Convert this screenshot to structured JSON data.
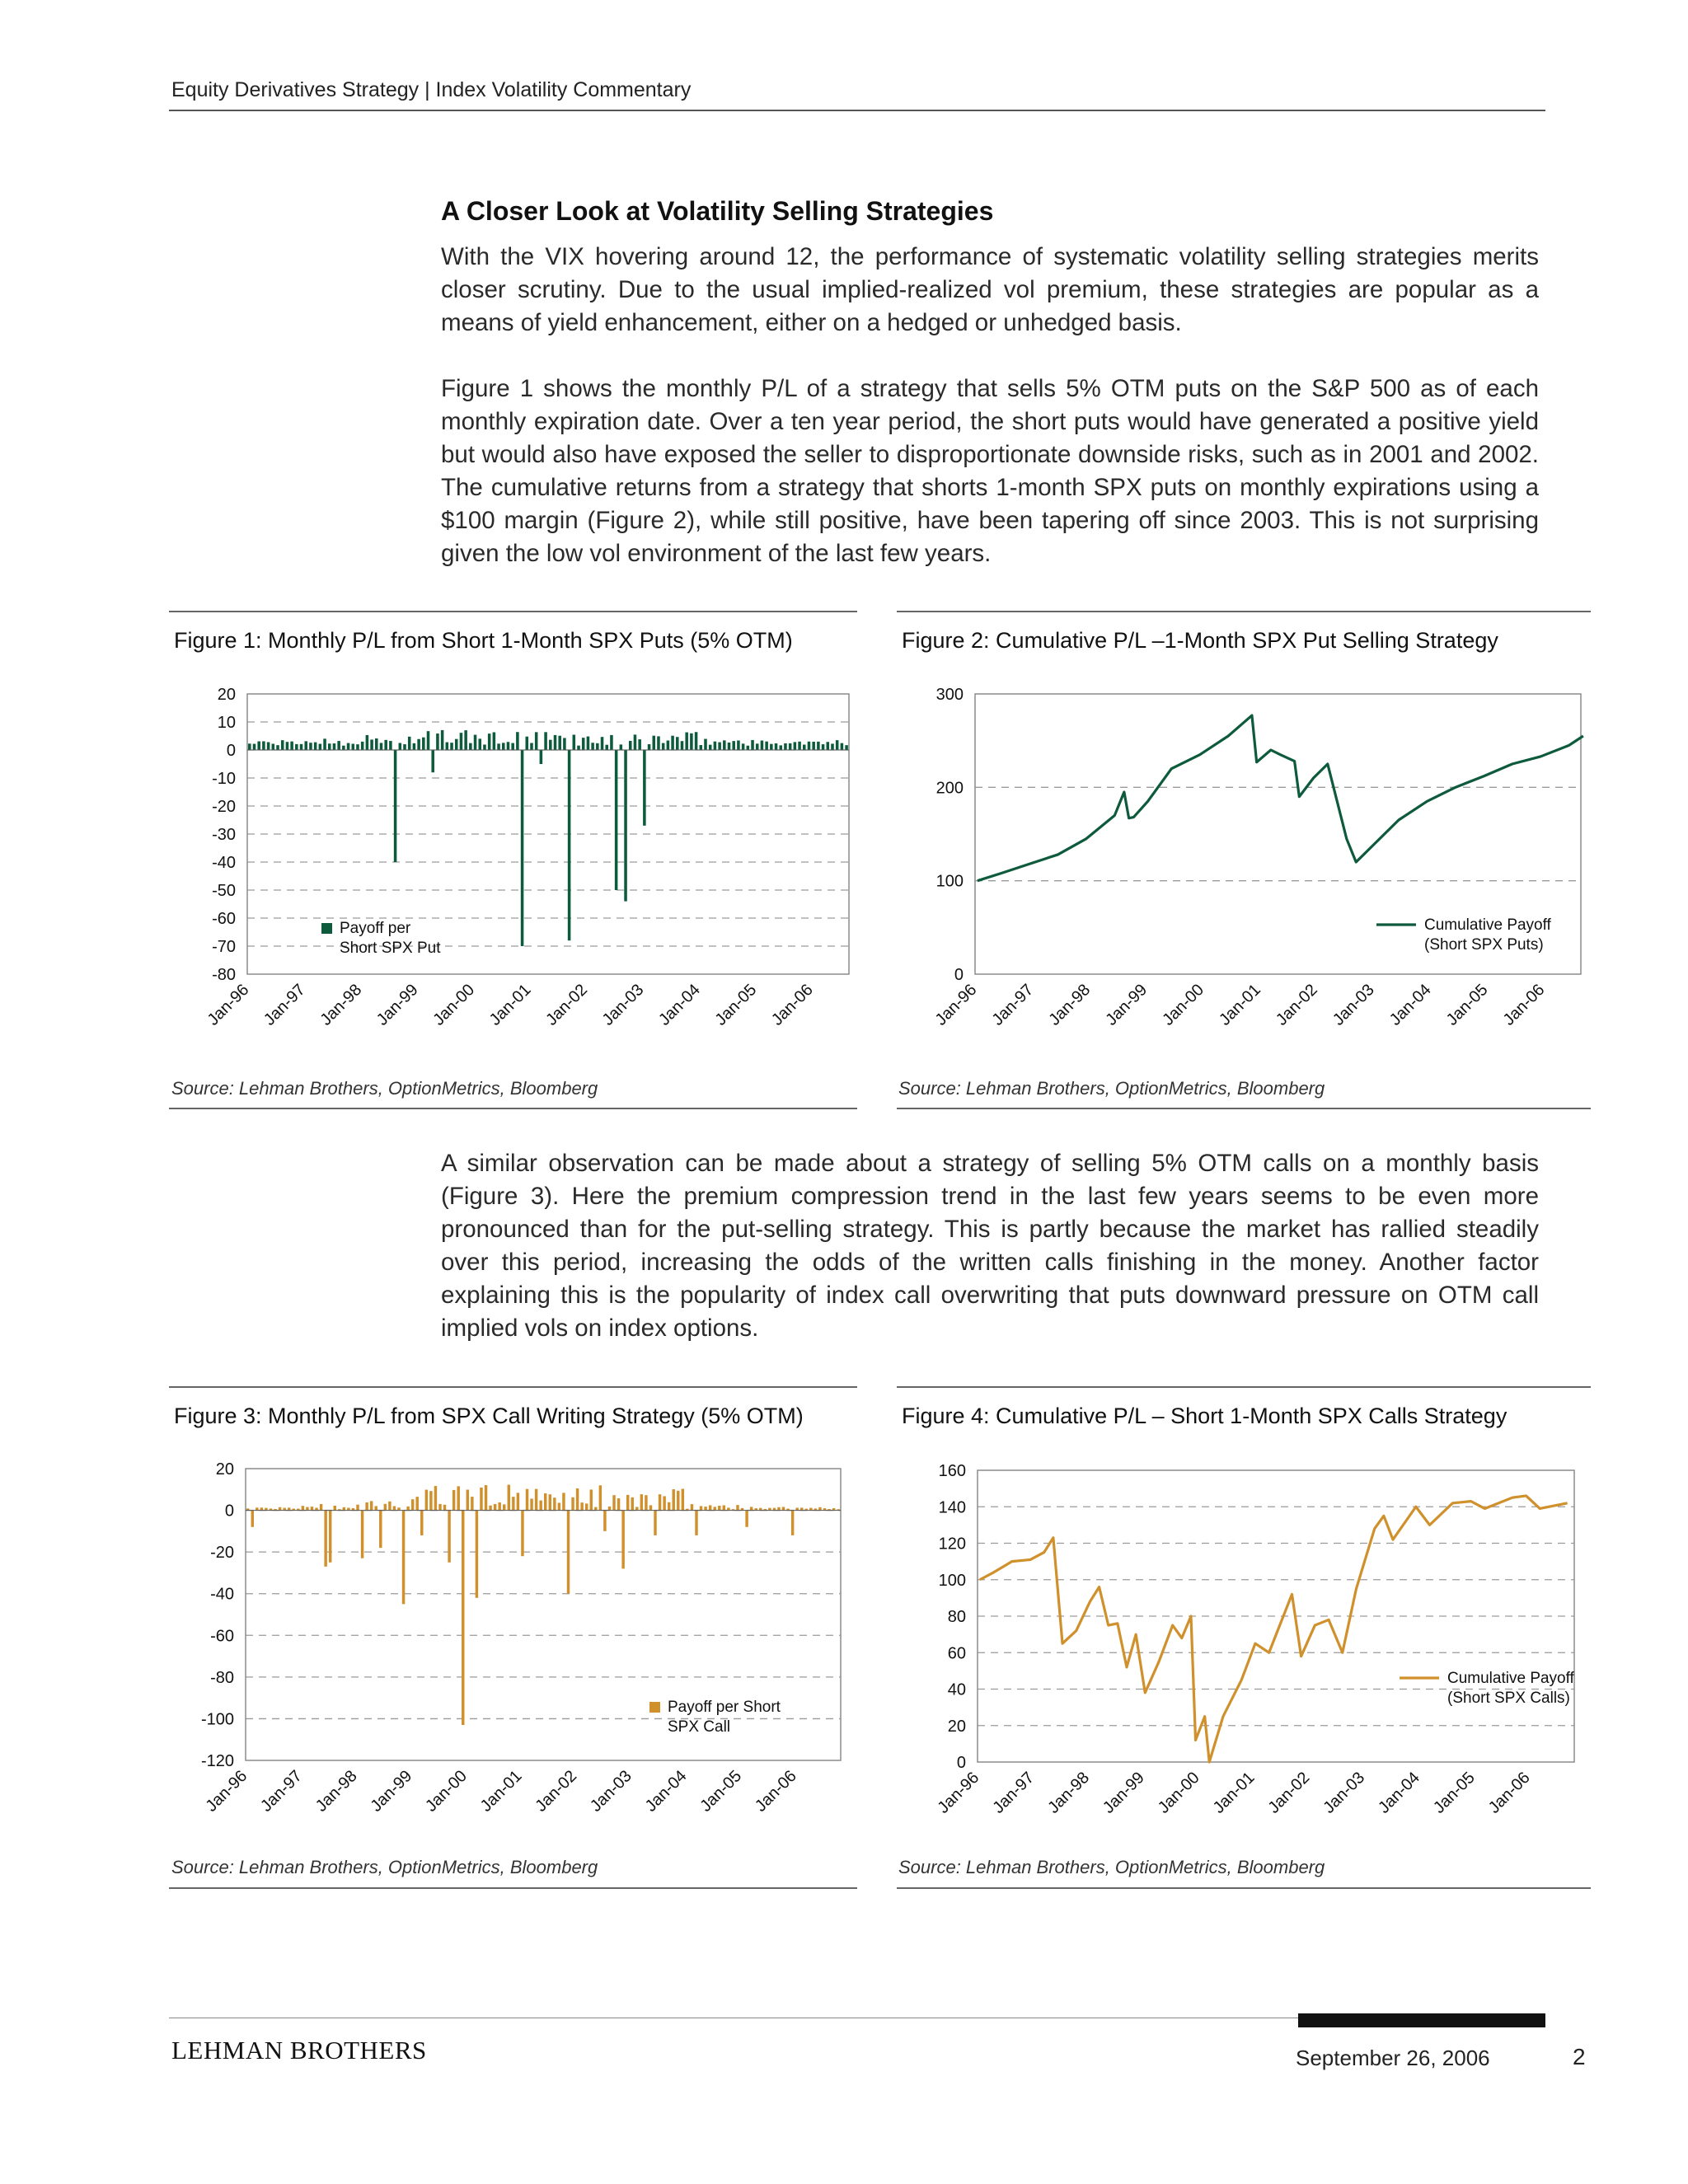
{
  "header": {
    "running_head": "Equity Derivatives Strategy | Index Volatility Commentary"
  },
  "article": {
    "section_title": "A Closer Look at Volatility Selling Strategies",
    "para1": "With the VIX hovering around 12, the performance of systematic volatility selling strategies merits closer scrutiny. Due to the usual implied-realized vol premium, these strategies are popular as a means of yield enhancement, either on a hedged or unhedged basis.",
    "para2": "Figure 1 shows the monthly P/L of a strategy that sells 5% OTM puts on the S&P 500 as of each monthly expiration date. Over a ten year period, the short puts would have generated a positive yield but would also have exposed the seller to disproportionate downside risks, such as in 2001 and 2002. The cumulative returns from a strategy that shorts 1-month SPX puts on monthly expirations using a $100 margin (Figure 2), while still positive, have been tapering off since 2003. This is not surprising given the low vol environment of the last few years.",
    "para3": "A similar observation can be made about a strategy of selling 5% OTM calls on a monthly basis (Figure 3). Here the premium compression trend in the last few years seems to be even more pronounced than for the put-selling strategy. This is partly because the market has rallied steadily over this period, increasing the odds of the written calls finishing in the money. Another factor explaining this is the popularity of index call overwriting that puts downward pressure on OTM call implied vols on index options."
  },
  "figures": {
    "fig1": {
      "title": "Figure 1: Monthly P/L from Short 1-Month SPX Puts (5% OTM)",
      "source": "Source: Lehman Brothers, OptionMetrics, Bloomberg"
    },
    "fig2": {
      "title": "Figure 2: Cumulative P/L –1-Month SPX Put Selling Strategy",
      "source": "Source: Lehman Brothers, OptionMetrics, Bloomberg"
    },
    "fig3": {
      "title": "Figure 3: Monthly P/L from SPX Call Writing Strategy (5% OTM)",
      "source": "Source: Lehman Brothers, OptionMetrics, Bloomberg"
    },
    "fig4": {
      "title": "Figure 4: Cumulative P/L – Short 1-Month SPX Calls Strategy",
      "source": "Source: Lehman Brothers, OptionMetrics, Bloomberg"
    }
  },
  "chart_data": [
    {
      "id": "fig1",
      "type": "bar",
      "color": "#0e5a3c",
      "ylim": [
        -80,
        20
      ],
      "yticks": [
        20,
        10,
        0,
        -10,
        -20,
        -30,
        -40,
        -50,
        -60,
        -70,
        -80
      ],
      "grid": "dashed",
      "legend": {
        "labels": [
          "Payoff per",
          "Short SPX Put"
        ],
        "placement": "bottom-left"
      },
      "series": [
        {
          "name": "Payoff per Short SPX Put",
          "x": [
            "Jan-96",
            "Jan-97",
            "Jan-98",
            "Jan-99",
            "Jan-00",
            "Jan-01",
            "Jan-02",
            "Jan-03",
            "Jan-04",
            "Jan-05",
            "Jan-06"
          ],
          "spikes": [
            [
              "1998-08",
              -40
            ],
            [
              "1999-04",
              -8
            ],
            [
              "2000-11",
              -70
            ],
            [
              "2001-03",
              -5
            ],
            [
              "2001-09",
              -68
            ],
            [
              "2002-07",
              -50
            ],
            [
              "2002-09",
              -54
            ],
            [
              "2003-01",
              -27
            ]
          ]
        }
      ]
    },
    {
      "id": "fig2",
      "type": "line",
      "color": "#0e5a3c",
      "ylim": [
        0,
        300
      ],
      "yticks": [
        300,
        200,
        100,
        0
      ],
      "grid": "dashed",
      "legend": {
        "labels": [
          "Cumulative Payoff",
          "(Short SPX Puts)"
        ],
        "placement": "bottom-right"
      },
      "x": [
        "Jan-96",
        "Jan-97",
        "Jan-98",
        "Jan-99",
        "Jan-00",
        "Jan-01",
        "Jan-02",
        "Jan-03",
        "Jan-04",
        "Jan-05",
        "Jan-06"
      ],
      "series": [
        {
          "name": "Cumulative Payoff (Short SPX Puts)",
          "points": [
            [
              "1996-01",
              100
            ],
            [
              "1996-06",
              108
            ],
            [
              "1996-12",
              118
            ],
            [
              "1997-06",
              128
            ],
            [
              "1997-12",
              145
            ],
            [
              "1998-06",
              170
            ],
            [
              "1998-08",
              195
            ],
            [
              "1998-09",
              167
            ],
            [
              "1998-10",
              168
            ],
            [
              "1999-01",
              185
            ],
            [
              "1999-06",
              220
            ],
            [
              "1999-12",
              235
            ],
            [
              "2000-06",
              255
            ],
            [
              "2000-11",
              277
            ],
            [
              "2000-12",
              227
            ],
            [
              "2001-03",
              240
            ],
            [
              "2001-05",
              235
            ],
            [
              "2001-08",
              228
            ],
            [
              "2001-09",
              190
            ],
            [
              "2001-12",
              210
            ],
            [
              "2002-03",
              225
            ],
            [
              "2002-07",
              145
            ],
            [
              "2002-09",
              120
            ],
            [
              "2002-12",
              135
            ],
            [
              "2003-06",
              165
            ],
            [
              "2003-12",
              185
            ],
            [
              "2004-06",
              200
            ],
            [
              "2004-12",
              212
            ],
            [
              "2005-06",
              225
            ],
            [
              "2005-12",
              233
            ],
            [
              "2006-06",
              245
            ],
            [
              "2006-09",
              255
            ]
          ]
        }
      ]
    },
    {
      "id": "fig3",
      "type": "bar",
      "color": "#d0902c",
      "ylim": [
        -120,
        20
      ],
      "yticks": [
        20,
        0,
        -20,
        -40,
        -60,
        -80,
        -100,
        -120
      ],
      "grid": "dashed",
      "legend": {
        "labels": [
          "Payoff per Short",
          "SPX Call"
        ],
        "placement": "bottom-right"
      },
      "series": [
        {
          "name": "Payoff per Short SPX Call",
          "x": [
            "Jan-96",
            "Jan-97",
            "Jan-98",
            "Jan-99",
            "Jan-00",
            "Jan-01",
            "Jan-02",
            "Jan-03",
            "Jan-04",
            "Jan-05",
            "Jan-06"
          ],
          "spikes": [
            [
              "1996-02",
              -8
            ],
            [
              "1997-06",
              -27
            ],
            [
              "1997-07",
              -25
            ],
            [
              "1998-02",
              -23
            ],
            [
              "1998-06",
              -18
            ],
            [
              "1998-11",
              -45
            ],
            [
              "1999-03",
              -12
            ],
            [
              "1999-09",
              -25
            ],
            [
              "1999-12",
              -103
            ],
            [
              "2000-03",
              -42
            ],
            [
              "2001-01",
              -22
            ],
            [
              "2001-11",
              -40
            ],
            [
              "2002-07",
              -10
            ],
            [
              "2002-11",
              -28
            ],
            [
              "2003-06",
              -12
            ],
            [
              "2004-03",
              -12
            ],
            [
              "2005-02",
              -8
            ],
            [
              "2005-12",
              -12
            ]
          ]
        }
      ]
    },
    {
      "id": "fig4",
      "type": "line",
      "color": "#d0902c",
      "ylim": [
        0,
        160
      ],
      "yticks": [
        160,
        140,
        120,
        100,
        80,
        60,
        40,
        20,
        0
      ],
      "grid": "dashed",
      "legend": {
        "labels": [
          "Cumulative Payoff",
          "(Short SPX Calls)"
        ],
        "placement": "right"
      },
      "x": [
        "Jan-96",
        "Jan-97",
        "Jan-98",
        "Jan-99",
        "Jan-00",
        "Jan-01",
        "Jan-02",
        "Jan-03",
        "Jan-04",
        "Jan-05",
        "Jan-06"
      ],
      "series": [
        {
          "name": "Cumulative Payoff (Short SPX Calls)",
          "points": [
            [
              "1996-01",
              100
            ],
            [
              "1996-04",
              104
            ],
            [
              "1996-08",
              110
            ],
            [
              "1996-12",
              111
            ],
            [
              "1997-03",
              115
            ],
            [
              "1997-05",
              123
            ],
            [
              "1997-07",
              65
            ],
            [
              "1997-10",
              72
            ],
            [
              "1998-01",
              88
            ],
            [
              "1998-03",
              96
            ],
            [
              "1998-05",
              75
            ],
            [
              "1998-07",
              76
            ],
            [
              "1998-09",
              52
            ],
            [
              "1998-11",
              70
            ],
            [
              "1999-01",
              38
            ],
            [
              "1999-04",
              55
            ],
            [
              "1999-07",
              75
            ],
            [
              "1999-09",
              68
            ],
            [
              "1999-11",
              80
            ],
            [
              "1999-12",
              12
            ],
            [
              "2000-02",
              25
            ],
            [
              "2000-03",
              0
            ],
            [
              "2000-06",
              25
            ],
            [
              "2000-10",
              45
            ],
            [
              "2001-01",
              65
            ],
            [
              "2001-04",
              60
            ],
            [
              "2001-09",
              92
            ],
            [
              "2001-11",
              58
            ],
            [
              "2002-02",
              75
            ],
            [
              "2002-05",
              78
            ],
            [
              "2002-08",
              60
            ],
            [
              "2002-11",
              95
            ],
            [
              "2003-03",
              128
            ],
            [
              "2003-05",
              135
            ],
            [
              "2003-07",
              122
            ],
            [
              "2003-12",
              140
            ],
            [
              "2004-03",
              130
            ],
            [
              "2004-08",
              142
            ],
            [
              "2004-12",
              143
            ],
            [
              "2005-03",
              139
            ],
            [
              "2005-09",
              145
            ],
            [
              "2005-12",
              146
            ],
            [
              "2006-03",
              139
            ],
            [
              "2006-09",
              142
            ]
          ]
        }
      ]
    }
  ],
  "footer": {
    "brand": "LEHMAN BROTHERS",
    "date": "September 26, 2006",
    "page_number": "2"
  }
}
